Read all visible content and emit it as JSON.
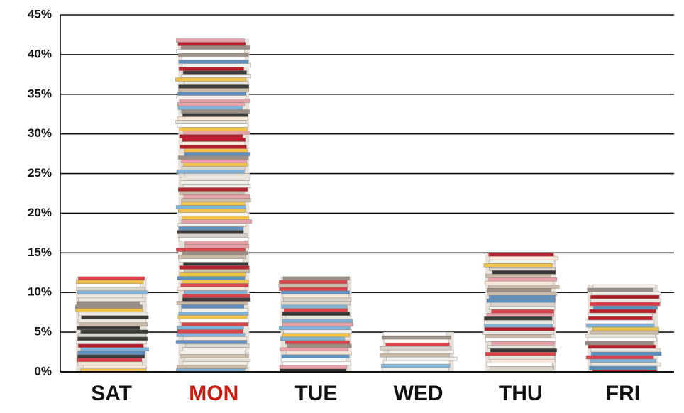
{
  "chart_data": {
    "type": "bar",
    "categories": [
      "SAT",
      "MON",
      "TUE",
      "WED",
      "THU",
      "FRI"
    ],
    "category_label_colors": [
      "#111111",
      "#cc1a10",
      "#111111",
      "#111111",
      "#111111",
      "#111111"
    ],
    "values": [
      12,
      42,
      12,
      5,
      15,
      11
    ],
    "ylim": [
      0,
      45
    ],
    "yticks": [
      {
        "value": 0,
        "label": "0%"
      },
      {
        "value": 5,
        "label": "5%"
      },
      {
        "value": 10,
        "label": "10%"
      },
      {
        "value": 15,
        "label": "15%"
      },
      {
        "value": 20,
        "label": "20%"
      },
      {
        "value": 25,
        "label": "25%"
      },
      {
        "value": 30,
        "label": "30%"
      },
      {
        "value": 35,
        "label": "35%"
      },
      {
        "value": 40,
        "label": "40%"
      },
      {
        "value": 45,
        "label": "45%"
      }
    ],
    "grid": true
  }
}
